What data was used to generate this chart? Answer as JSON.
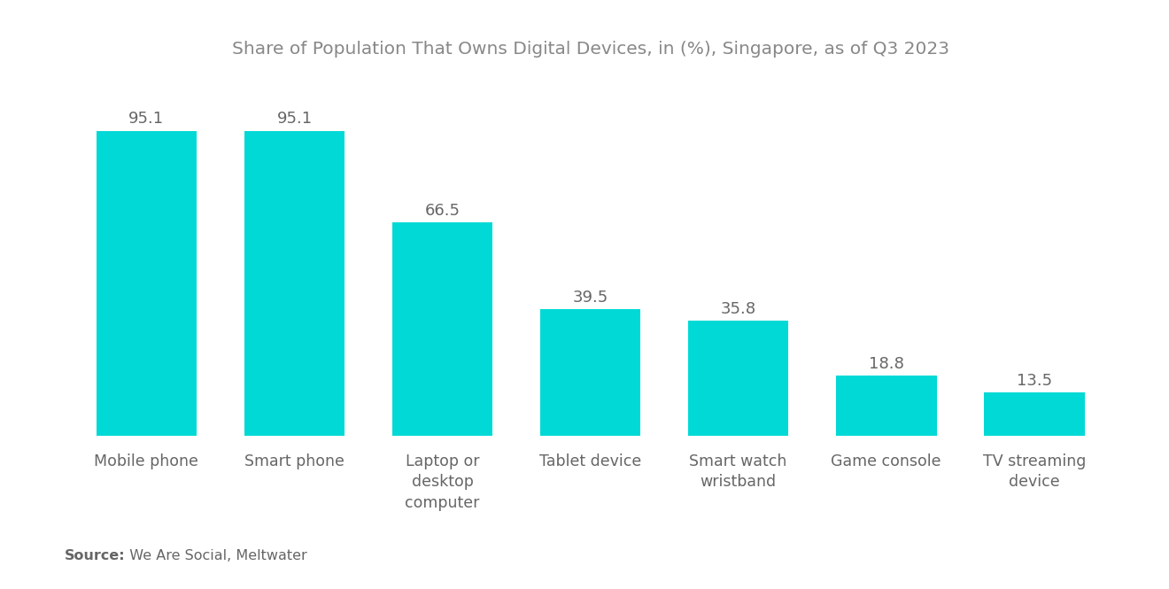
{
  "title": "Share of Population That Owns Digital Devices, in (%), Singapore, as of Q3 2023",
  "categories": [
    "Mobile phone",
    "Smart phone",
    "Laptop or\ndesktop\ncomputer",
    "Tablet device",
    "Smart watch\nwristband",
    "Game console",
    "TV streaming\ndevice"
  ],
  "values": [
    95.1,
    95.1,
    66.5,
    39.5,
    35.8,
    18.8,
    13.5
  ],
  "bar_color": "#00D9D5",
  "title_color": "#888888",
  "label_color": "#666666",
  "value_color": "#666666",
  "source_label_bold": "Source:",
  "source_text": "  We Are Social, Meltwater",
  "background_color": "#FFFFFF",
  "ylim": [
    0,
    112
  ],
  "title_fontsize": 14.5,
  "label_fontsize": 12.5,
  "value_fontsize": 13,
  "source_fontsize": 11.5,
  "bar_width": 0.68
}
